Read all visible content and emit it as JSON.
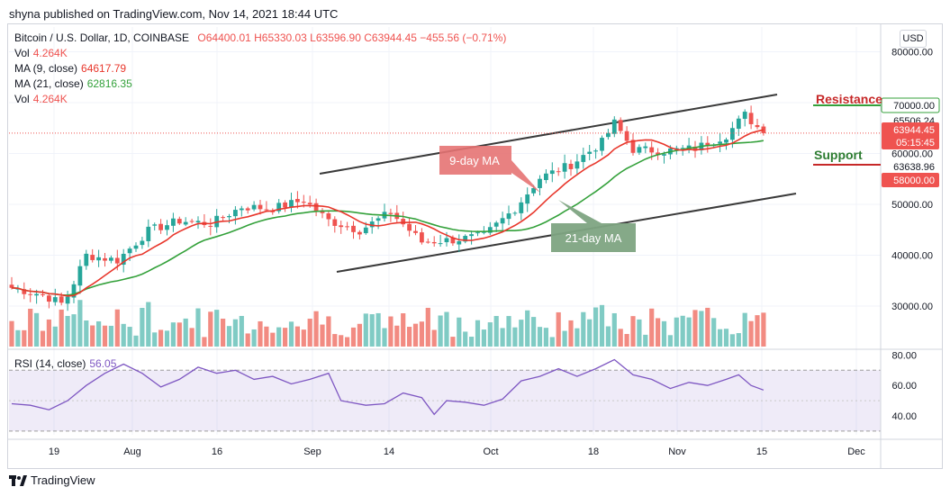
{
  "header": {
    "published": "shyna published on TradingView.com, Nov 14, 2021 18:44 UTC",
    "symbol": "Bitcoin / U.S. Dollar, 1D, COINBASE",
    "ohlc": "O64400.01  H65330.03  L63596.90  C63944.45  −455.56 (−0.71%)",
    "vol_label": "Vol",
    "vol_value": "4.264K",
    "ma9_label": "MA (9, close)",
    "ma9_value": "64617.79",
    "ma21_label": "MA (21, close)",
    "ma21_value": "62816.35",
    "vol2_label": "Vol",
    "vol2_value": "4.264K",
    "currency": "USD"
  },
  "rsi": {
    "label": "RSI (14, close)",
    "value": "56.05"
  },
  "footer": {
    "brand": "TradingView"
  },
  "colors": {
    "up": "#26a69a",
    "down": "#ef5350",
    "ma9": "#e8372c",
    "ma21": "#34a13b",
    "rsi": "#7e57c2"
  },
  "chart_data": [
    {
      "type": "candlestick",
      "price_axis": {
        "ticks": [
          30000,
          40000,
          50000,
          60000,
          70000,
          80000
        ],
        "tick_labels": [
          "30000.00",
          "40000.00",
          "50000.00",
          "60000.00",
          "70000.00",
          "80000.00"
        ]
      },
      "time_axis": {
        "tick_labels": [
          "19",
          "Aug",
          "16",
          "Sep",
          "14",
          "Oct",
          "18",
          "Nov",
          "15",
          "Dec"
        ]
      },
      "price_tags": [
        {
          "label": "70000.00",
          "color": "#34a13b",
          "style": "outline"
        },
        {
          "label": "65506.24",
          "color": "#ffffff",
          "style": "plain"
        },
        {
          "label": "63944.45",
          "sub": "05:15:45",
          "color": "#ef5350",
          "style": "filled"
        },
        {
          "label": "63638.96",
          "color": "#ffffff",
          "style": "plain"
        },
        {
          "label": "58000.00",
          "color": "#ef5350",
          "style": "filled"
        }
      ],
      "annotations": {
        "resistance": "Resistance",
        "support": "Support",
        "ma9_callout": "9-day MA",
        "ma21_callout": "21-day MA"
      },
      "anchors": [
        {
          "d": 0,
          "o": 34200,
          "c": 33600
        },
        {
          "d": 5,
          "o": 32800,
          "c": 32200
        },
        {
          "d": 8,
          "o": 31800,
          "c": 30500
        },
        {
          "d": 9,
          "o": 30200,
          "c": 32000
        },
        {
          "d": 12,
          "o": 31800,
          "c": 40000
        },
        {
          "d": 17,
          "o": 38800,
          "c": 39000
        },
        {
          "d": 22,
          "o": 42000,
          "c": 44800
        },
        {
          "d": 27,
          "o": 45600,
          "c": 46800
        },
        {
          "d": 32,
          "o": 44800,
          "c": 46200
        },
        {
          "d": 37,
          "o": 48800,
          "c": 49500
        },
        {
          "d": 42,
          "o": 47000,
          "c": 49200
        },
        {
          "d": 47,
          "o": 49200,
          "c": 50800
        },
        {
          "d": 51,
          "o": 52600,
          "c": 46800
        },
        {
          "d": 56,
          "o": 46200,
          "c": 44900
        },
        {
          "d": 61,
          "o": 47800,
          "c": 48400
        },
        {
          "d": 66,
          "o": 45800,
          "c": 42600
        },
        {
          "d": 71,
          "o": 42800,
          "c": 43000
        },
        {
          "d": 76,
          "o": 41000,
          "c": 43800
        },
        {
          "d": 81,
          "o": 48200,
          "c": 49200
        },
        {
          "d": 85,
          "o": 54800,
          "c": 55200
        },
        {
          "d": 90,
          "o": 57000,
          "c": 57800
        },
        {
          "d": 95,
          "o": 61500,
          "c": 62200
        },
        {
          "d": 97,
          "o": 62300,
          "c": 66000
        },
        {
          "d": 100,
          "o": 62000,
          "c": 60800
        },
        {
          "d": 105,
          "o": 62500,
          "c": 60500
        },
        {
          "d": 110,
          "o": 61500,
          "c": 61000
        },
        {
          "d": 115,
          "o": 61800,
          "c": 63600
        },
        {
          "d": 118,
          "o": 63200,
          "c": 67600
        },
        {
          "d": 121,
          "o": 65500,
          "c": 64000
        }
      ],
      "volume_range_btc": [
        0,
        4000
      ],
      "rsi_axis": {
        "ticks": [
          40,
          60,
          80
        ],
        "tick_labels": [
          "40.00",
          "60.00",
          "80.00"
        ],
        "band": [
          30,
          70
        ]
      },
      "rsi_anchors": [
        [
          0,
          48
        ],
        [
          3,
          47
        ],
        [
          6,
          44
        ],
        [
          9,
          50
        ],
        [
          12,
          60
        ],
        [
          15,
          68
        ],
        [
          18,
          74
        ],
        [
          21,
          68
        ],
        [
          24,
          59
        ],
        [
          27,
          64
        ],
        [
          30,
          72
        ],
        [
          33,
          68
        ],
        [
          36,
          70
        ],
        [
          39,
          64
        ],
        [
          42,
          66
        ],
        [
          45,
          61
        ],
        [
          48,
          64
        ],
        [
          51,
          68
        ],
        [
          53,
          50
        ],
        [
          57,
          47
        ],
        [
          60,
          48
        ],
        [
          63,
          55
        ],
        [
          66,
          52
        ],
        [
          68,
          41
        ],
        [
          70,
          50
        ],
        [
          73,
          49
        ],
        [
          76,
          47
        ],
        [
          79,
          51
        ],
        [
          82,
          63
        ],
        [
          85,
          66
        ],
        [
          88,
          71
        ],
        [
          91,
          66
        ],
        [
          94,
          71
        ],
        [
          97,
          77
        ],
        [
          100,
          67
        ],
        [
          103,
          64
        ],
        [
          106,
          58
        ],
        [
          109,
          62
        ],
        [
          112,
          60
        ],
        [
          115,
          64
        ],
        [
          117,
          67
        ],
        [
          119,
          60
        ],
        [
          121,
          57
        ]
      ]
    }
  ]
}
